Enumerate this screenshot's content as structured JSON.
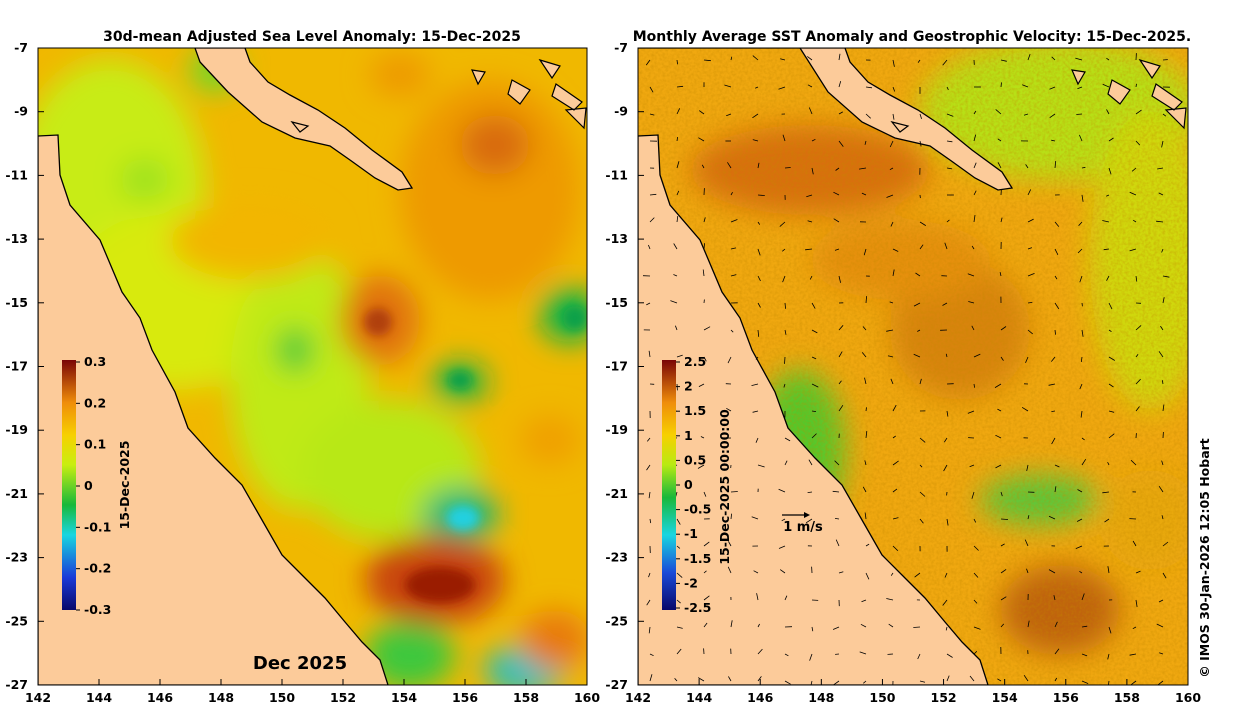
{
  "left_panel": {
    "title": "30d-mean Adjusted Sea Level Anomaly: 15-Dec-2025",
    "month_label": "Dec 2025",
    "colorbar_label": "15-Dec-2025",
    "colorbar_ticks": [
      "0.3",
      "0.2",
      "0.1",
      "0",
      "-0.1",
      "-0.2",
      "-0.3"
    ],
    "colorbar_range": [
      -0.3,
      0.3
    ]
  },
  "right_panel": {
    "title": "Monthly Average SST Anomaly  and Geostrophic Velocity: 15-Dec-2025.",
    "colorbar_label": "15-Dec-2025 00:00:00",
    "colorbar_ticks": [
      "2.5",
      "2",
      "1.5",
      "1",
      "0.5",
      "0",
      "-0.5",
      "-1",
      "-1.5",
      "-2",
      "-2.5"
    ],
    "colorbar_range": [
      -2.5,
      2.5
    ],
    "velocity_scale_label": "1 m/s"
  },
  "axes": {
    "x_ticks": [
      "142",
      "144",
      "146",
      "148",
      "150",
      "152",
      "154",
      "156",
      "158",
      "160"
    ],
    "y_ticks": [
      "-7",
      "-9",
      "-11",
      "-13",
      "-15",
      "-17",
      "-19",
      "-21",
      "-23",
      "-25",
      "-27"
    ],
    "lon_range": [
      142,
      160
    ],
    "lat_range": [
      -27,
      -7
    ]
  },
  "credit": "© IMOS 30-Jan-2026 12:05 Hobart",
  "colors": {
    "land": "#fccb9a",
    "sea_base": "#f3b000",
    "coast": "#000000"
  }
}
